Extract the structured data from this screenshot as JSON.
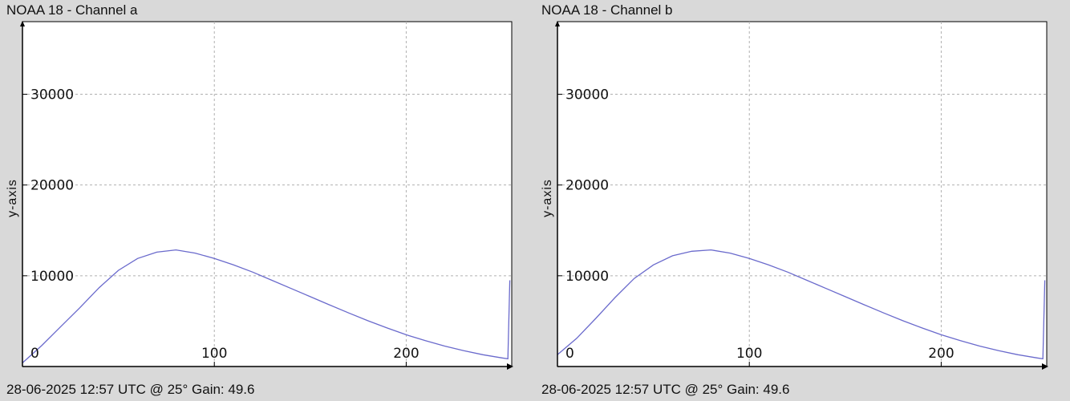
{
  "chart_data": [
    {
      "type": "line",
      "title": "NOAA 18 - Channel a",
      "ylabel": "y-axis",
      "footer": "28-06-2025 12:57 UTC @ 25° Gain: 49.6",
      "xlim": [
        0,
        255
      ],
      "ylim": [
        0,
        38000
      ],
      "xticks": [
        0,
        100,
        200
      ],
      "yticks": [
        10000,
        20000,
        30000
      ],
      "grid": true,
      "series": [
        {
          "color": "#6a6acc",
          "x": [
            0,
            10,
            20,
            30,
            40,
            50,
            60,
            70,
            80,
            90,
            100,
            110,
            120,
            130,
            140,
            150,
            160,
            170,
            180,
            190,
            200,
            210,
            220,
            230,
            240,
            250,
            253,
            254
          ],
          "y": [
            400,
            2300,
            4400,
            6500,
            8700,
            10600,
            11900,
            12600,
            12850,
            12500,
            11900,
            11200,
            10400,
            9500,
            8600,
            7700,
            6800,
            5900,
            5050,
            4250,
            3500,
            2850,
            2250,
            1750,
            1300,
            950,
            850,
            9500
          ]
        }
      ]
    },
    {
      "type": "line",
      "title": "NOAA 18 - Channel b",
      "ylabel": "y-axis",
      "footer": "28-06-2025 12:57 UTC @ 25° Gain: 49.6",
      "xlim": [
        0,
        255
      ],
      "ylim": [
        0,
        38000
      ],
      "xticks": [
        0,
        100,
        200
      ],
      "yticks": [
        10000,
        20000,
        30000
      ],
      "grid": true,
      "series": [
        {
          "color": "#6a6acc",
          "x": [
            0,
            10,
            20,
            30,
            40,
            50,
            60,
            70,
            80,
            90,
            100,
            110,
            120,
            130,
            140,
            150,
            160,
            170,
            180,
            190,
            200,
            210,
            220,
            230,
            240,
            250,
            253,
            254
          ],
          "y": [
            1300,
            3100,
            5300,
            7600,
            9700,
            11200,
            12200,
            12700,
            12850,
            12500,
            11900,
            11200,
            10400,
            9500,
            8600,
            7700,
            6800,
            5900,
            5050,
            4250,
            3500,
            2850,
            2250,
            1750,
            1300,
            950,
            850,
            9500
          ]
        }
      ]
    }
  ]
}
